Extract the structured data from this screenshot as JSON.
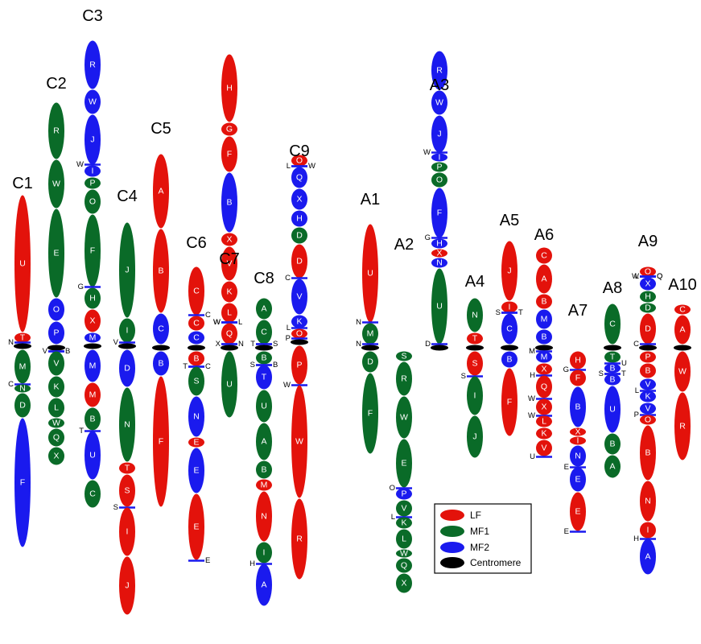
{
  "colors": {
    "LF": "#e3120b",
    "MF1": "#0a6b28",
    "MF2": "#1a1aee",
    "Centromere": "#000000"
  },
  "legend": [
    {
      "key": "LF",
      "label": "LF"
    },
    {
      "key": "MF1",
      "label": "MF1"
    },
    {
      "key": "MF2",
      "label": "MF2"
    },
    {
      "key": "Centromere",
      "label": "Centromere"
    }
  ],
  "chromosomes": [
    {
      "name": "C1",
      "segments": [
        {
          "l": "U",
          "c": "LF",
          "h": 170
        },
        {
          "l": "T",
          "c": "LF",
          "h": 12
        },
        {
          "t": "N",
          "s": "L"
        },
        {
          "cen": 1
        },
        {
          "l": "M",
          "c": "MF1",
          "h": 42
        },
        {
          "t": "C",
          "s": "L"
        },
        {
          "l": "N",
          "c": "MF1",
          "h": 10
        },
        {
          "l": "D",
          "c": "MF1",
          "h": 30
        },
        {
          "l": "F",
          "c": "MF2",
          "h": 160
        }
      ]
    },
    {
      "name": "C2",
      "segments": [
        {
          "l": "R",
          "c": "MF1",
          "h": 70
        },
        {
          "l": "W",
          "c": "MF1",
          "h": 60
        },
        {
          "l": "E",
          "c": "MF1",
          "h": 110
        },
        {
          "l": "O",
          "c": "MF2",
          "h": 28
        },
        {
          "l": "P",
          "c": "MF2",
          "h": 28
        },
        {
          "cen": 1
        },
        {
          "t": "V",
          "s": "L"
        },
        {
          "t": "B",
          "s": "R"
        },
        {
          "l": "V",
          "c": "MF1",
          "h": 30
        },
        {
          "l": "K",
          "c": "MF1",
          "h": 26
        },
        {
          "l": "L",
          "c": "MF1",
          "h": 24
        },
        {
          "l": "W",
          "c": "MF1",
          "h": 12
        },
        {
          "l": "Q",
          "c": "MF1",
          "h": 22
        },
        {
          "l": "X",
          "c": "MF1",
          "h": 22
        }
      ]
    },
    {
      "name": "C3",
      "segments": [
        {
          "l": "R",
          "c": "MF2",
          "h": 60
        },
        {
          "l": "W",
          "c": "MF2",
          "h": 30
        },
        {
          "l": "J",
          "c": "MF2",
          "h": 62
        },
        {
          "t": "W",
          "s": "L"
        },
        {
          "l": "I",
          "c": "MF2",
          "h": 14
        },
        {
          "l": "P",
          "c": "MF1",
          "h": 14
        },
        {
          "l": "O",
          "c": "MF1",
          "h": 30
        },
        {
          "l": "F",
          "c": "MF1",
          "h": 90
        },
        {
          "t": "G",
          "s": "L"
        },
        {
          "l": "H",
          "c": "MF1",
          "h": 26
        },
        {
          "l": "X",
          "c": "LF",
          "h": 28
        },
        {
          "l": "M",
          "c": "MF2",
          "h": 12
        },
        {
          "cen": 1
        },
        {
          "l": "M",
          "c": "MF2",
          "h": 40
        },
        {
          "l": "M",
          "c": "LF",
          "h": 30
        },
        {
          "l": "B",
          "c": "MF1",
          "h": 28
        },
        {
          "t": "T",
          "s": "L"
        },
        {
          "l": "U",
          "c": "MF2",
          "h": 60
        },
        {
          "l": "C",
          "c": "MF1",
          "h": 34
        }
      ]
    },
    {
      "name": "C4",
      "segments": [
        {
          "l": "J",
          "c": "MF1",
          "h": 118
        },
        {
          "l": "I",
          "c": "MF1",
          "h": 30
        },
        {
          "t": "V",
          "s": "L"
        },
        {
          "cen": 1
        },
        {
          "l": "D",
          "c": "MF2",
          "h": 46
        },
        {
          "l": "N",
          "c": "MF1",
          "h": 92
        },
        {
          "l": "T",
          "c": "LF",
          "h": 14
        },
        {
          "l": "S",
          "c": "LF",
          "h": 40
        },
        {
          "t": "S",
          "s": "L"
        },
        {
          "l": "I",
          "c": "LF",
          "h": 60
        },
        {
          "l": "J",
          "c": "LF",
          "h": 72
        }
      ]
    },
    {
      "name": "C5",
      "segments": [
        {
          "l": "A",
          "c": "LF",
          "h": 92
        },
        {
          "l": "B",
          "c": "LF",
          "h": 104
        },
        {
          "l": "C",
          "c": "MF2",
          "h": 38
        },
        {
          "cen": 1
        },
        {
          "l": "B",
          "c": "MF2",
          "h": 30
        },
        {
          "l": "F",
          "c": "LF",
          "h": 162
        }
      ]
    },
    {
      "name": "C6",
      "segments": [
        {
          "l": "C",
          "c": "LF",
          "h": 60
        },
        {
          "t": "C",
          "s": "R"
        },
        {
          "l": "C",
          "c": "LF",
          "h": 18
        },
        {
          "l": "C",
          "c": "MF2",
          "h": 16
        },
        {
          "cen": 1
        },
        {
          "l": "B",
          "c": "LF",
          "h": 18
        },
        {
          "t": "C",
          "s": "R"
        },
        {
          "t": "T",
          "s": "L"
        },
        {
          "l": "S",
          "c": "MF1",
          "h": 36
        },
        {
          "l": "N",
          "c": "MF2",
          "h": 50
        },
        {
          "l": "E",
          "c": "LF",
          "h": 12
        },
        {
          "l": "E",
          "c": "MF2",
          "h": 56
        },
        {
          "l": "E",
          "c": "LF",
          "h": 82
        },
        {
          "t": "E",
          "s": "R"
        }
      ]
    },
    {
      "name": "C7",
      "segments": [
        {
          "l": "H",
          "c": "LF",
          "h": 84
        },
        {
          "l": "G",
          "c": "LF",
          "h": 16
        },
        {
          "l": "F",
          "c": "LF",
          "h": 44
        },
        {
          "l": "B",
          "c": "MF2",
          "h": 74
        },
        {
          "l": "X",
          "c": "LF",
          "h": 16
        },
        {
          "l": "V",
          "c": "LF",
          "h": 42
        },
        {
          "l": "K",
          "c": "LF",
          "h": 26
        },
        {
          "l": "L",
          "c": "LF",
          "h": 24
        },
        {
          "t": "W",
          "s": "L"
        },
        {
          "t": "L",
          "s": "R"
        },
        {
          "t": "W",
          "s": "L"
        },
        {
          "l": "Q",
          "c": "LF",
          "h": 26
        },
        {
          "t": "X",
          "s": "L"
        },
        {
          "t": "N",
          "s": "R"
        },
        {
          "cen": 1
        },
        {
          "l": "U",
          "c": "MF1",
          "h": 82
        }
      ]
    },
    {
      "name": "C8",
      "segments": [
        {
          "l": "A",
          "c": "MF1",
          "h": 26
        },
        {
          "l": "C",
          "c": "MF1",
          "h": 30
        },
        {
          "t": "T",
          "s": "L"
        },
        {
          "t": "S",
          "s": "R"
        },
        {
          "cen": 1
        },
        {
          "l": "B",
          "c": "MF1",
          "h": 16
        },
        {
          "t": "S",
          "s": "L"
        },
        {
          "t": "B",
          "s": "R"
        },
        {
          "l": "T",
          "c": "MF2",
          "h": 30
        },
        {
          "l": "U",
          "c": "MF1",
          "h": 40
        },
        {
          "l": "A",
          "c": "MF1",
          "h": 46
        },
        {
          "l": "B",
          "c": "MF1",
          "h": 22
        },
        {
          "l": "M",
          "c": "LF",
          "h": 14
        },
        {
          "l": "N",
          "c": "LF",
          "h": 62
        },
        {
          "l": "I",
          "c": "MF1",
          "h": 26
        },
        {
          "t": "H",
          "s": "L"
        },
        {
          "l": "A",
          "c": "MF2",
          "h": 52
        }
      ]
    },
    {
      "name": "C9",
      "segments": [
        {
          "l": "O",
          "c": "LF",
          "h": 14
        },
        {
          "t": "L",
          "s": "L"
        },
        {
          "t": "W",
          "s": "R"
        },
        {
          "l": "Q",
          "c": "MF2",
          "h": 26
        },
        {
          "l": "X",
          "c": "MF2",
          "h": 26
        },
        {
          "l": "H",
          "c": "MF2",
          "h": 20
        },
        {
          "l": "D",
          "c": "MF1",
          "h": 20
        },
        {
          "l": "D",
          "c": "LF",
          "h": 42
        },
        {
          "t": "C",
          "s": "L"
        },
        {
          "l": "V",
          "c": "MF2",
          "h": 44
        },
        {
          "l": "K",
          "c": "MF2",
          "h": 16
        },
        {
          "t": "L",
          "s": "L"
        },
        {
          "l": "O",
          "c": "LF",
          "h": 12
        },
        {
          "t": "P",
          "s": "L"
        },
        {
          "cen": 1
        },
        {
          "l": "P",
          "c": "LF",
          "h": 48
        },
        {
          "t": "W",
          "s": "L"
        },
        {
          "l": "W",
          "c": "LF",
          "h": 140
        },
        {
          "l": "R",
          "c": "LF",
          "h": 100
        }
      ]
    },
    {
      "name": "A1",
      "segments": [
        {
          "l": "U",
          "c": "LF",
          "h": 122
        },
        {
          "t": "N",
          "s": "L"
        },
        {
          "l": "M",
          "c": "MF1",
          "h": 26
        },
        {
          "t": "N",
          "s": "L"
        },
        {
          "cen": 1
        },
        {
          "l": "D",
          "c": "MF1",
          "h": 26
        },
        {
          "l": "F",
          "c": "MF1",
          "h": 100
        }
      ]
    },
    {
      "name": "A2",
      "segments": [
        {
          "l": "S",
          "c": "MF1",
          "h": 12
        },
        {
          "l": "R",
          "c": "MF1",
          "h": 42
        },
        {
          "l": "W",
          "c": "MF1",
          "h": 52
        },
        {
          "l": "E",
          "c": "MF1",
          "h": 60
        },
        {
          "t": "O",
          "s": "L"
        },
        {
          "l": "P",
          "c": "MF2",
          "h": 14
        },
        {
          "l": "V",
          "c": "MF1",
          "h": 20
        },
        {
          "t": "L",
          "s": "L"
        },
        {
          "l": "K",
          "c": "MF1",
          "h": 14
        },
        {
          "l": "L",
          "c": "MF1",
          "h": 24
        },
        {
          "l": "W",
          "c": "MF1",
          "h": 10
        },
        {
          "l": "Q",
          "c": "MF1",
          "h": 18
        },
        {
          "l": "X",
          "c": "MF1",
          "h": 24
        }
      ]
    },
    {
      "name": "A3",
      "segments": [
        {
          "l": "R",
          "c": "MF2",
          "h": 48
        },
        {
          "l": "W",
          "c": "MF2",
          "h": 30
        },
        {
          "l": "J",
          "c": "MF2",
          "h": 46
        },
        {
          "t": "W",
          "s": "L"
        },
        {
          "l": "I",
          "c": "MF2",
          "h": 10
        },
        {
          "l": "P",
          "c": "MF1",
          "h": 12
        },
        {
          "l": "O",
          "c": "MF1",
          "h": 18
        },
        {
          "l": "F",
          "c": "MF2",
          "h": 62
        },
        {
          "t": "G",
          "s": "L"
        },
        {
          "l": "H",
          "c": "MF2",
          "h": 12
        },
        {
          "l": "X",
          "c": "LF",
          "h": 10
        },
        {
          "l": "N",
          "c": "MF2",
          "h": 12
        },
        {
          "l": "U",
          "c": "MF1",
          "h": 94
        },
        {
          "t": "D",
          "s": "L"
        },
        {
          "cen": 1
        }
      ]
    },
    {
      "name": "A4",
      "segments": [
        {
          "l": "N",
          "c": "MF1",
          "h": 42
        },
        {
          "l": "T",
          "c": "LF",
          "h": 14
        },
        {
          "cen": 1
        },
        {
          "l": "S",
          "c": "LF",
          "h": 30
        },
        {
          "t": "S",
          "s": "L"
        },
        {
          "l": "I",
          "c": "MF1",
          "h": 48
        },
        {
          "l": "J",
          "c": "MF1",
          "h": 52
        }
      ]
    },
    {
      "name": "A5",
      "segments": [
        {
          "l": "J",
          "c": "LF",
          "h": 74
        },
        {
          "l": "I",
          "c": "LF",
          "h": 14
        },
        {
          "t": "S",
          "s": "L"
        },
        {
          "t": "T",
          "s": "R"
        },
        {
          "l": "C",
          "c": "MF2",
          "h": 38
        },
        {
          "cen": 1
        },
        {
          "l": "B",
          "c": "MF2",
          "h": 20
        },
        {
          "l": "F",
          "c": "LF",
          "h": 84
        }
      ]
    },
    {
      "name": "A6",
      "segments": [
        {
          "l": "C",
          "c": "LF",
          "h": 20
        },
        {
          "l": "A",
          "c": "LF",
          "h": 36
        },
        {
          "l": "B",
          "c": "LF",
          "h": 18
        },
        {
          "l": "M",
          "c": "MF2",
          "h": 24
        },
        {
          "l": "B",
          "c": "MF2",
          "h": 18
        },
        {
          "cen": 1
        },
        {
          "t": "M",
          "s": "L"
        },
        {
          "l": "M",
          "c": "MF2",
          "h": 14
        },
        {
          "l": "X",
          "c": "LF",
          "h": 14
        },
        {
          "t": "H",
          "s": "L"
        },
        {
          "l": "Q",
          "c": "LF",
          "h": 28
        },
        {
          "t": "W",
          "s": "L"
        },
        {
          "l": "X",
          "c": "LF",
          "h": 20
        },
        {
          "t": "W",
          "s": "L"
        },
        {
          "l": "L",
          "c": "LF",
          "h": 14
        },
        {
          "l": "K",
          "c": "LF",
          "h": 14
        },
        {
          "l": "V",
          "c": "LF",
          "h": 20
        },
        {
          "t": "U",
          "s": "L"
        }
      ]
    },
    {
      "name": "A7",
      "segments": [
        {
          "l": "H",
          "c": "LF",
          "h": 22
        },
        {
          "t": "G",
          "s": "L"
        },
        {
          "l": "F",
          "c": "LF",
          "h": 20
        },
        {
          "l": "B",
          "c": "MF2",
          "h": 50
        },
        {
          "l": "X",
          "c": "LF",
          "h": 10
        },
        {
          "l": "I",
          "c": "LF",
          "h": 10
        },
        {
          "l": "N",
          "c": "MF2",
          "h": 26
        },
        {
          "t": "E",
          "s": "L"
        },
        {
          "l": "E",
          "c": "MF2",
          "h": 30
        },
        {
          "l": "E",
          "c": "LF",
          "h": 48
        },
        {
          "t": "E",
          "s": "L"
        }
      ]
    },
    {
      "name": "A8",
      "segments": [
        {
          "l": "C",
          "c": "MF1",
          "h": 50
        },
        {
          "cen": 1
        },
        {
          "l": "T",
          "c": "MF1",
          "h": 14
        },
        {
          "t": "U",
          "s": "R"
        },
        {
          "l": "B",
          "c": "MF2",
          "h": 12
        },
        {
          "t": "S",
          "s": "L"
        },
        {
          "t": "T",
          "s": "R"
        },
        {
          "l": "B",
          "c": "MF2",
          "h": 14
        },
        {
          "l": "U",
          "c": "MF2",
          "h": 58
        },
        {
          "l": "B",
          "c": "MF1",
          "h": 26
        },
        {
          "l": "A",
          "c": "MF1",
          "h": 28
        }
      ]
    },
    {
      "name": "A9",
      "segments": [
        {
          "l": "O",
          "c": "LF",
          "h": 12
        },
        {
          "t": "L",
          "s": "L"
        },
        {
          "t": "O",
          "s": "R"
        },
        {
          "t": "W",
          "s": "L"
        },
        {
          "t": "Q",
          "s": "R"
        },
        {
          "l": "X",
          "c": "MF2",
          "h": 16
        },
        {
          "l": "H",
          "c": "MF1",
          "h": 14
        },
        {
          "l": "D",
          "c": "MF1",
          "h": 12
        },
        {
          "l": "D",
          "c": "LF",
          "h": 38
        },
        {
          "t": "C",
          "s": "L"
        },
        {
          "cen": 1
        },
        {
          "l": "P",
          "c": "LF",
          "h": 14
        },
        {
          "l": "B",
          "c": "LF",
          "h": 18
        },
        {
          "l": "V",
          "c": "MF2",
          "h": 14
        },
        {
          "t": "L",
          "s": "L"
        },
        {
          "l": "K",
          "c": "MF2",
          "h": 14
        },
        {
          "l": "V",
          "c": "MF2",
          "h": 14
        },
        {
          "t": "P",
          "s": "L"
        },
        {
          "l": "O",
          "c": "LF",
          "h": 12
        },
        {
          "l": "B",
          "c": "LF",
          "h": 68
        },
        {
          "l": "N",
          "c": "LF",
          "h": 50
        },
        {
          "l": "I",
          "c": "LF",
          "h": 20
        },
        {
          "t": "H",
          "s": "L"
        },
        {
          "l": "A",
          "c": "MF2",
          "h": 44
        }
      ]
    },
    {
      "name": "A10",
      "segments": [
        {
          "l": "C",
          "c": "LF",
          "h": 12
        },
        {
          "l": "A",
          "c": "LF",
          "h": 36
        },
        {
          "cen": 1
        },
        {
          "l": "W",
          "c": "LF",
          "h": 50
        },
        {
          "l": "R",
          "c": "LF",
          "h": 84
        }
      ]
    }
  ]
}
